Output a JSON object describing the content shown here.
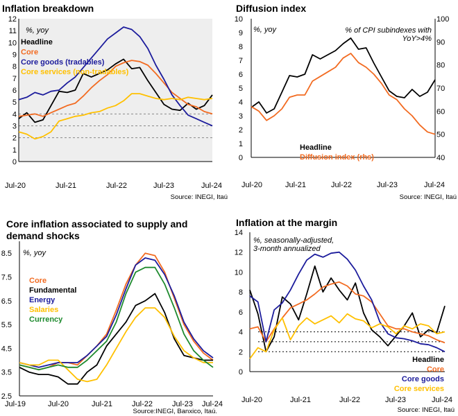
{
  "colors": {
    "headline": "#000000",
    "core": "#f26b21",
    "goods": "#1c1c9c",
    "services": "#ffc000",
    "currency": "#1e8a2e",
    "plot_bg": "#eeeeee"
  },
  "chart_data": [
    {
      "type": "line",
      "title": "Inflation breakdown",
      "unit_label": "%, yoy",
      "source": "Source: INEGI, Itaú",
      "ylim": [
        0,
        12
      ],
      "y_ticks": [
        0,
        1,
        2,
        3,
        4,
        5,
        6,
        7,
        8,
        9,
        10,
        11,
        12
      ],
      "x_labels": [
        "Jul-20",
        "Jul-21",
        "Jul-22",
        "Jul-23",
        "Jul-24"
      ],
      "x_range": [
        "2020-07",
        "2024-07"
      ],
      "grid": "dashed at 2, 3, 4",
      "reference_lines": [
        2,
        3,
        4
      ],
      "legend_position": "top-left",
      "series": [
        {
          "name": "Headline",
          "color": "#000000",
          "x": [
            "2020-07",
            "2020-09",
            "2020-11",
            "2021-01",
            "2021-03",
            "2021-05",
            "2021-07",
            "2021-09",
            "2021-11",
            "2022-01",
            "2022-03",
            "2022-05",
            "2022-07",
            "2022-09",
            "2022-11",
            "2023-01",
            "2023-03",
            "2023-05",
            "2023-07",
            "2023-09",
            "2023-11",
            "2024-01",
            "2024-03",
            "2024-05",
            "2024-07"
          ],
          "y": [
            3.6,
            4.1,
            3.3,
            3.5,
            4.7,
            5.9,
            5.8,
            6.0,
            7.4,
            7.1,
            7.4,
            7.7,
            8.2,
            8.6,
            7.8,
            7.9,
            6.8,
            5.8,
            4.8,
            4.4,
            4.3,
            4.9,
            4.4,
            4.7,
            5.6
          ]
        },
        {
          "name": "Core",
          "color": "#f26b21",
          "x": [
            "2020-07",
            "2020-09",
            "2020-11",
            "2021-01",
            "2021-03",
            "2021-05",
            "2021-07",
            "2021-09",
            "2021-11",
            "2022-01",
            "2022-03",
            "2022-05",
            "2022-07",
            "2022-09",
            "2022-11",
            "2023-01",
            "2023-03",
            "2023-05",
            "2023-07",
            "2023-09",
            "2023-11",
            "2024-01",
            "2024-03",
            "2024-05",
            "2024-07"
          ],
          "y": [
            3.8,
            3.9,
            4.0,
            3.8,
            4.1,
            4.4,
            4.7,
            4.9,
            5.5,
            6.2,
            6.8,
            7.3,
            8.0,
            8.3,
            8.5,
            8.4,
            8.1,
            7.4,
            6.6,
            5.8,
            5.3,
            4.8,
            4.6,
            4.2,
            4.0
          ]
        },
        {
          "name": "Core goods (tradables)",
          "color": "#1c1c9c",
          "x": [
            "2020-07",
            "2020-09",
            "2020-11",
            "2021-01",
            "2021-03",
            "2021-05",
            "2021-07",
            "2021-09",
            "2021-11",
            "2022-01",
            "2022-03",
            "2022-05",
            "2022-07",
            "2022-09",
            "2022-11",
            "2023-01",
            "2023-03",
            "2023-05",
            "2023-07",
            "2023-09",
            "2023-11",
            "2024-01",
            "2024-03",
            "2024-05",
            "2024-07"
          ],
          "y": [
            5.2,
            5.4,
            5.8,
            5.6,
            5.9,
            6.0,
            6.6,
            7.1,
            7.9,
            8.7,
            9.5,
            10.3,
            10.8,
            11.3,
            11.1,
            10.5,
            9.5,
            8.1,
            6.9,
            5.6,
            4.7,
            3.9,
            3.6,
            3.3,
            3.0
          ]
        },
        {
          "name": "Core services (non-tradables)",
          "color": "#ffc000",
          "x": [
            "2020-07",
            "2020-09",
            "2020-11",
            "2021-01",
            "2021-03",
            "2021-05",
            "2021-07",
            "2021-09",
            "2021-11",
            "2022-01",
            "2022-03",
            "2022-05",
            "2022-07",
            "2022-09",
            "2022-11",
            "2023-01",
            "2023-03",
            "2023-05",
            "2023-07",
            "2023-09",
            "2023-11",
            "2024-01",
            "2024-03",
            "2024-05",
            "2024-07"
          ],
          "y": [
            2.5,
            2.3,
            1.9,
            2.1,
            2.5,
            3.4,
            3.6,
            3.8,
            3.9,
            4.1,
            4.2,
            4.5,
            4.7,
            5.1,
            5.7,
            5.7,
            5.5,
            5.3,
            5.2,
            5.3,
            5.2,
            5.4,
            5.3,
            5.2,
            5.3
          ]
        }
      ]
    },
    {
      "type": "line",
      "title": "Diffusion index",
      "unit_label": "%, yoy",
      "rhs_label": "% of CPI subindexes with YoY>4%",
      "source": "Source: INEGI, Itaú",
      "ylim": [
        0,
        10
      ],
      "y_ticks": [
        0,
        1,
        2,
        3,
        4,
        5,
        6,
        7,
        8,
        9,
        10
      ],
      "y2lim": [
        40,
        100
      ],
      "y2_ticks": [
        40,
        50,
        60,
        70,
        80,
        90,
        100
      ],
      "x_labels": [
        "Jul-20",
        "Jul-21",
        "Jul-22",
        "Jul-23",
        "Jul-24"
      ],
      "x_range": [
        "2020-07",
        "2024-07"
      ],
      "grid": "none",
      "legend_position": "bottom-center",
      "series": [
        {
          "name": "Headline",
          "color": "#000000",
          "axis": "left",
          "x": [
            "2020-07",
            "2020-09",
            "2020-11",
            "2021-01",
            "2021-03",
            "2021-05",
            "2021-07",
            "2021-09",
            "2021-11",
            "2022-01",
            "2022-03",
            "2022-05",
            "2022-07",
            "2022-09",
            "2022-11",
            "2023-01",
            "2023-03",
            "2023-05",
            "2023-07",
            "2023-09",
            "2023-11",
            "2024-01",
            "2024-03",
            "2024-05",
            "2024-07"
          ],
          "y": [
            3.6,
            4.0,
            3.2,
            3.5,
            4.7,
            5.9,
            5.8,
            6.0,
            7.4,
            7.1,
            7.4,
            7.7,
            8.2,
            8.6,
            7.8,
            7.9,
            6.8,
            5.8,
            4.8,
            4.4,
            4.3,
            4.9,
            4.4,
            4.7,
            5.6
          ]
        },
        {
          "name": "Diffusion index (rhs)",
          "color": "#f26b21",
          "axis": "right",
          "x": [
            "2020-07",
            "2020-09",
            "2020-11",
            "2021-01",
            "2021-03",
            "2021-05",
            "2021-07",
            "2021-09",
            "2021-11",
            "2022-01",
            "2022-03",
            "2022-05",
            "2022-07",
            "2022-09",
            "2022-11",
            "2023-01",
            "2023-03",
            "2023-05",
            "2023-07",
            "2023-09",
            "2023-11",
            "2024-01",
            "2024-03",
            "2024-05",
            "2024-07"
          ],
          "y": [
            62,
            60,
            56,
            58,
            61,
            66,
            67,
            67,
            73,
            75,
            77,
            79,
            83,
            85,
            81,
            79,
            76,
            72,
            67,
            65,
            61,
            58,
            54,
            51,
            50
          ]
        }
      ]
    },
    {
      "type": "line",
      "title": "Core inflation associated to supply and demand shocks",
      "unit_label": "%, yoy",
      "source": "Source:INEGI, Banxico, Itaú.",
      "ylim": [
        2.5,
        9.0
      ],
      "y_ticks": [
        2.5,
        3.5,
        4.5,
        5.5,
        6.5,
        7.5,
        8.5
      ],
      "x_labels": [
        "Jul-19",
        "Jul-20",
        "Jul-21",
        "Jul-22",
        "Jul-23",
        "Jul-24"
      ],
      "x_range": [
        "2019-07",
        "2024-07"
      ],
      "grid": "none",
      "legend_position": "middle-left",
      "series": [
        {
          "name": "Core",
          "color": "#f26b21",
          "x": [
            "2019-07",
            "2019-10",
            "2020-01",
            "2020-04",
            "2020-07",
            "2020-10",
            "2021-01",
            "2021-04",
            "2021-07",
            "2021-10",
            "2022-01",
            "2022-04",
            "2022-07",
            "2022-10",
            "2023-01",
            "2023-04",
            "2023-07",
            "2023-10",
            "2024-01",
            "2024-04",
            "2024-07"
          ],
          "y": [
            3.8,
            3.7,
            3.6,
            3.7,
            3.9,
            3.9,
            3.8,
            4.2,
            4.6,
            5.1,
            6.1,
            7.2,
            8.0,
            8.5,
            8.4,
            7.7,
            6.6,
            5.5,
            4.8,
            4.3,
            4.0
          ]
        },
        {
          "name": "Fundamental",
          "color": "#000000",
          "x": [
            "2019-07",
            "2019-10",
            "2020-01",
            "2020-04",
            "2020-07",
            "2020-10",
            "2021-01",
            "2021-04",
            "2021-07",
            "2021-10",
            "2022-01",
            "2022-04",
            "2022-07",
            "2022-10",
            "2023-01",
            "2023-04",
            "2023-07",
            "2023-10",
            "2024-01",
            "2024-04",
            "2024-07"
          ],
          "y": [
            3.7,
            3.5,
            3.4,
            3.4,
            3.3,
            3.0,
            3.0,
            3.5,
            3.8,
            4.6,
            5.1,
            5.6,
            6.3,
            6.5,
            6.8,
            6.0,
            4.9,
            4.2,
            4.1,
            4.0,
            4.0
          ]
        },
        {
          "name": "Energy",
          "color": "#1c1c9c",
          "x": [
            "2019-07",
            "2019-10",
            "2020-01",
            "2020-04",
            "2020-07",
            "2020-10",
            "2021-01",
            "2021-04",
            "2021-07",
            "2021-10",
            "2022-01",
            "2022-04",
            "2022-07",
            "2022-10",
            "2023-01",
            "2023-04",
            "2023-07",
            "2023-10",
            "2024-01",
            "2024-04",
            "2024-07"
          ],
          "y": [
            3.9,
            3.8,
            3.7,
            3.8,
            3.9,
            3.9,
            3.9,
            4.2,
            4.6,
            5.0,
            5.9,
            7.0,
            8.0,
            8.3,
            8.2,
            7.6,
            6.7,
            5.6,
            4.9,
            4.4,
            4.1
          ]
        },
        {
          "name": "Salaries",
          "color": "#ffc000",
          "x": [
            "2019-07",
            "2019-10",
            "2020-01",
            "2020-04",
            "2020-07",
            "2020-10",
            "2021-01",
            "2021-04",
            "2021-07",
            "2021-10",
            "2022-01",
            "2022-04",
            "2022-07",
            "2022-10",
            "2023-01",
            "2023-04",
            "2023-07",
            "2023-10",
            "2024-01",
            "2024-04",
            "2024-07"
          ],
          "y": [
            3.9,
            3.8,
            3.8,
            4.0,
            4.0,
            3.6,
            3.2,
            3.1,
            3.2,
            3.8,
            4.5,
            5.2,
            5.8,
            6.2,
            6.2,
            5.8,
            5.0,
            4.4,
            4.1,
            3.9,
            3.9
          ]
        },
        {
          "name": "Currency",
          "color": "#1e8a2e",
          "x": [
            "2019-07",
            "2019-10",
            "2020-01",
            "2020-04",
            "2020-07",
            "2020-10",
            "2021-01",
            "2021-04",
            "2021-07",
            "2021-10",
            "2022-01",
            "2022-04",
            "2022-07",
            "2022-10",
            "2023-01",
            "2023-04",
            "2023-07",
            "2023-10",
            "2024-01",
            "2024-04",
            "2024-07"
          ],
          "y": [
            3.8,
            3.7,
            3.6,
            3.7,
            3.8,
            3.7,
            3.7,
            4.0,
            4.4,
            4.8,
            5.6,
            6.8,
            7.7,
            7.9,
            7.9,
            7.2,
            6.2,
            5.1,
            4.4,
            4.0,
            3.7
          ]
        }
      ]
    },
    {
      "type": "line",
      "title": "Inflation at the margin",
      "unit_label": "%, seasonally-adjusted, 3-month annualized",
      "source": "Source: INEGI, Itaú",
      "ylim": [
        0,
        14
      ],
      "y_ticks": [
        0,
        2,
        4,
        6,
        8,
        10,
        12,
        14
      ],
      "x_labels": [
        "Jul-20",
        "Jul-21",
        "Jul-22",
        "Jul-23",
        "Jul-24"
      ],
      "x_range": [
        "2020-07",
        "2024-07"
      ],
      "grid": "dotted at 2, 3, 4",
      "reference_lines": [
        2,
        3,
        4
      ],
      "legend_position": "bottom-right",
      "series": [
        {
          "name": "Headline",
          "color": "#000000",
          "x": [
            "2020-07",
            "2020-09",
            "2020-11",
            "2021-01",
            "2021-03",
            "2021-05",
            "2021-07",
            "2021-09",
            "2021-11",
            "2022-01",
            "2022-03",
            "2022-05",
            "2022-07",
            "2022-09",
            "2022-11",
            "2023-01",
            "2023-03",
            "2023-05",
            "2023-07",
            "2023-09",
            "2023-11",
            "2024-01",
            "2024-03",
            "2024-05",
            "2024-07"
          ],
          "y": [
            8.2,
            5.8,
            2.0,
            3.5,
            7.5,
            6.8,
            5.2,
            7.8,
            10.6,
            8.0,
            9.4,
            8.2,
            7.2,
            8.9,
            5.9,
            4.2,
            3.5,
            2.6,
            3.6,
            4.6,
            5.9,
            3.5,
            4.2,
            3.9,
            6.6
          ]
        },
        {
          "name": "Core",
          "color": "#f26b21",
          "x": [
            "2020-07",
            "2020-09",
            "2020-11",
            "2021-01",
            "2021-03",
            "2021-05",
            "2021-07",
            "2021-09",
            "2021-11",
            "2022-01",
            "2022-03",
            "2022-05",
            "2022-07",
            "2022-09",
            "2022-11",
            "2023-01",
            "2023-03",
            "2023-05",
            "2023-07",
            "2023-09",
            "2023-11",
            "2024-01",
            "2024-03",
            "2024-05",
            "2024-07"
          ],
          "y": [
            4.3,
            4.5,
            3.0,
            4.3,
            5.4,
            6.4,
            6.8,
            7.2,
            7.8,
            8.5,
            8.8,
            9.0,
            8.6,
            7.8,
            7.6,
            7.0,
            5.8,
            4.6,
            4.3,
            4.3,
            4.0,
            3.8,
            3.6,
            3.2,
            2.9
          ]
        },
        {
          "name": "Core goods",
          "color": "#1c1c9c",
          "x": [
            "2020-07",
            "2020-09",
            "2020-11",
            "2021-01",
            "2021-03",
            "2021-05",
            "2021-07",
            "2021-09",
            "2021-11",
            "2022-01",
            "2022-03",
            "2022-05",
            "2022-07",
            "2022-09",
            "2022-11",
            "2023-01",
            "2023-03",
            "2023-05",
            "2023-07",
            "2023-09",
            "2023-11",
            "2024-01",
            "2024-03",
            "2024-05",
            "2024-07"
          ],
          "y": [
            7.6,
            7.0,
            3.0,
            6.2,
            6.9,
            8.2,
            9.8,
            11.2,
            11.8,
            11.5,
            11.9,
            12.0,
            11.3,
            10.2,
            8.6,
            7.2,
            5.0,
            3.8,
            3.4,
            3.3,
            3.1,
            2.8,
            2.7,
            2.4,
            2.0
          ]
        },
        {
          "name": "Core services",
          "color": "#ffc000",
          "x": [
            "2020-07",
            "2020-09",
            "2020-11",
            "2021-01",
            "2021-03",
            "2021-05",
            "2021-07",
            "2021-09",
            "2021-11",
            "2022-01",
            "2022-03",
            "2022-05",
            "2022-07",
            "2022-09",
            "2022-11",
            "2023-01",
            "2023-03",
            "2023-05",
            "2023-07",
            "2023-09",
            "2023-11",
            "2024-01",
            "2024-03",
            "2024-05",
            "2024-07"
          ],
          "y": [
            1.3,
            2.4,
            2.0,
            4.2,
            5.4,
            3.2,
            4.6,
            5.4,
            4.8,
            5.2,
            5.6,
            4.9,
            5.8,
            5.3,
            5.1,
            4.4,
            4.8,
            4.5,
            3.8,
            4.6,
            4.3,
            4.8,
            4.6,
            3.8,
            4.0
          ]
        }
      ]
    }
  ]
}
